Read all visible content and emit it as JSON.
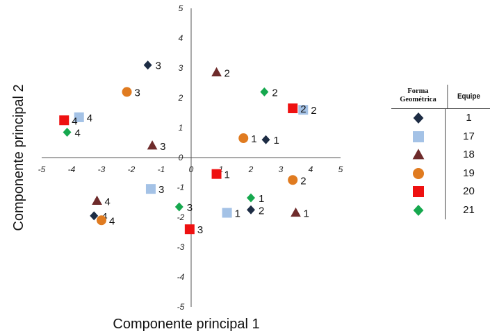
{
  "chart_data": {
    "type": "scatter",
    "xlabel": "Componente principal 1",
    "ylabel": "Componente principal 2",
    "xlim": [
      -5,
      5
    ],
    "ylim": [
      -5,
      5
    ],
    "x_ticks": [
      -5,
      -4,
      -3,
      -2,
      -1,
      0,
      1,
      2,
      3,
      4,
      5
    ],
    "y_ticks": [
      5,
      4,
      3,
      2,
      1,
      0,
      -1,
      -2,
      -3,
      -4,
      -5
    ],
    "x_tick_labels": [
      "-5",
      "-4",
      "-3",
      "-2",
      "-1",
      "0",
      "1",
      "2",
      "3",
      "4",
      "5"
    ],
    "y_tick_labels": [
      "5",
      "4",
      "3",
      "2",
      "1",
      "0",
      "-1",
      "-2",
      "-3",
      "-4",
      "-5"
    ],
    "grid": false,
    "legend_placement": "right",
    "series": [
      {
        "name": "1",
        "shape": "diamond",
        "color": "#1d2c44",
        "points": [
          {
            "x": 2.5,
            "y": 0.6,
            "label": "1"
          },
          {
            "x": 2.0,
            "y": -1.75,
            "label": "2"
          },
          {
            "x": -1.45,
            "y": 3.1,
            "label": "3"
          },
          {
            "x": -3.25,
            "y": -1.95,
            "label": "4"
          }
        ]
      },
      {
        "name": "17",
        "shape": "square",
        "color": "#a4c2e6",
        "points": [
          {
            "x": 1.2,
            "y": -1.85,
            "label": "1"
          },
          {
            "x": 3.75,
            "y": 1.6,
            "label": "2"
          },
          {
            "x": -1.35,
            "y": -1.05,
            "label": "3"
          },
          {
            "x": -3.75,
            "y": 1.35,
            "label": "4"
          }
        ]
      },
      {
        "name": "18",
        "shape": "triangle",
        "color": "#6e2b2b",
        "points": [
          {
            "x": 3.5,
            "y": -1.85,
            "label": "1"
          },
          {
            "x": 0.85,
            "y": 2.85,
            "label": "2"
          },
          {
            "x": -1.3,
            "y": 0.4,
            "label": "3"
          },
          {
            "x": -3.15,
            "y": -1.45,
            "label": "4"
          }
        ]
      },
      {
        "name": "19",
        "shape": "circle",
        "color": "#e07b20",
        "points": [
          {
            "x": 1.75,
            "y": 0.65,
            "label": "1"
          },
          {
            "x": 3.4,
            "y": -0.75,
            "label": "2"
          },
          {
            "x": -2.15,
            "y": 2.2,
            "label": "3"
          },
          {
            "x": -3.0,
            "y": -2.1,
            "label": "4"
          }
        ]
      },
      {
        "name": "20",
        "shape": "square",
        "color": "#ee1111",
        "points": [
          {
            "x": 0.85,
            "y": -0.55,
            "label": "1"
          },
          {
            "x": 3.4,
            "y": 1.65,
            "label": "2"
          },
          {
            "x": -0.05,
            "y": -2.4,
            "label": "3"
          },
          {
            "x": -4.25,
            "y": 1.25,
            "label": "4"
          }
        ]
      },
      {
        "name": "21",
        "shape": "diamond",
        "color": "#16a84e",
        "points": [
          {
            "x": 2.0,
            "y": -1.35,
            "label": "1"
          },
          {
            "x": 2.45,
            "y": 2.2,
            "label": "2"
          },
          {
            "x": -0.4,
            "y": -1.65,
            "label": "3"
          },
          {
            "x": -4.15,
            "y": 0.85,
            "label": "4"
          }
        ]
      }
    ]
  },
  "legend": {
    "header_shape": "Forma Geométrica",
    "header_team": "Equipe",
    "rows": [
      {
        "id": "1",
        "shape": "diamond",
        "color": "#1d2c44"
      },
      {
        "id": "17",
        "shape": "square",
        "color": "#a4c2e6"
      },
      {
        "id": "18",
        "shape": "triangle",
        "color": "#6e2b2b"
      },
      {
        "id": "19",
        "shape": "circle",
        "color": "#e07b20"
      },
      {
        "id": "20",
        "shape": "square",
        "color": "#ee1111"
      },
      {
        "id": "21",
        "shape": "diamond",
        "color": "#16a84e"
      }
    ]
  }
}
